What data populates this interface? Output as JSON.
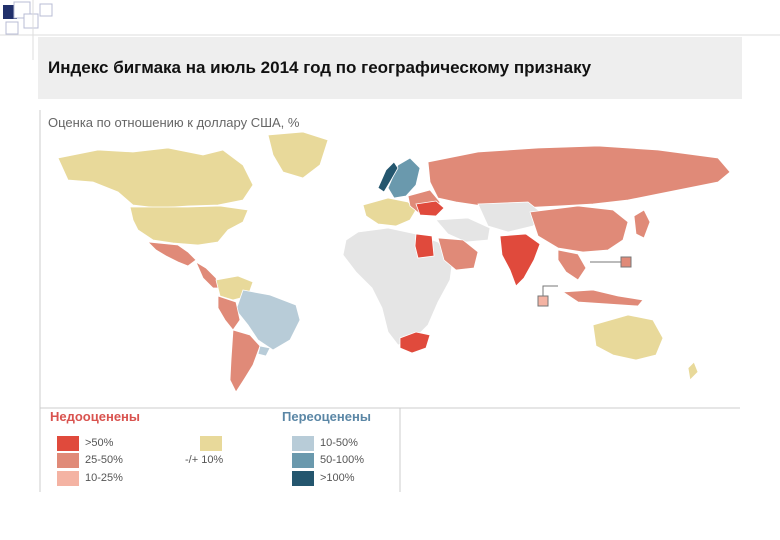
{
  "title": "Индекс бигмака на июль 2014 год по географическому признаку",
  "subtitle": "Оценка по отношению к доллару США, %",
  "colors": {
    "under_gt50": "#e04a3c",
    "under_25_50": "#e08a78",
    "under_10_25": "#f4b3a3",
    "neutral": "#e8d99a",
    "over_10_50": "#b8ccd8",
    "over_50_100": "#6a99ad",
    "over_gt100": "#24566e",
    "no_data": "#e5e5e5",
    "title_band": "#eeeeee",
    "deco_square": "#21306b"
  },
  "legend": {
    "undervalued_heading": "Недооценены",
    "overvalued_heading": "Переоценены",
    "items": [
      {
        "label": ">50%",
        "color": "#e04a3c"
      },
      {
        "label": "25-50%",
        "color": "#e08a78"
      },
      {
        "label": "10-25%",
        "color": "#f4b3a3"
      },
      {
        "label": "-/+ 10%",
        "color": "#e8d99a"
      },
      {
        "label": "10-50%",
        "color": "#b8ccd8"
      },
      {
        "label": "50-100%",
        "color": "#6a99ad"
      },
      {
        "label": ">100%",
        "color": "#24566e"
      }
    ]
  },
  "regions": [
    {
      "name": "north-america-north",
      "category": "neutral"
    },
    {
      "name": "usa",
      "category": "neutral"
    },
    {
      "name": "greenland",
      "category": "neutral"
    },
    {
      "name": "mexico",
      "category": "under_25_50"
    },
    {
      "name": "central-america",
      "category": "under_25_50"
    },
    {
      "name": "colombia-venezuela",
      "category": "neutral"
    },
    {
      "name": "brazil",
      "category": "over_10_50"
    },
    {
      "name": "peru",
      "category": "under_25_50"
    },
    {
      "name": "argentina-chile",
      "category": "under_25_50"
    },
    {
      "name": "uruguay",
      "category": "over_10_50"
    },
    {
      "name": "europe-west",
      "category": "neutral"
    },
    {
      "name": "scandinavia",
      "category": "over_50_100"
    },
    {
      "name": "norway",
      "category": "over_gt100"
    },
    {
      "name": "eastern-europe",
      "category": "under_25_50"
    },
    {
      "name": "ukraine",
      "category": "under_gt50"
    },
    {
      "name": "russia",
      "category": "under_25_50"
    },
    {
      "name": "africa",
      "category": "no_data"
    },
    {
      "name": "egypt",
      "category": "under_gt50"
    },
    {
      "name": "south-africa",
      "category": "under_gt50"
    },
    {
      "name": "middle-east",
      "category": "no_data"
    },
    {
      "name": "saudi-arabia",
      "category": "under_25_50"
    },
    {
      "name": "central-asia",
      "category": "no_data"
    },
    {
      "name": "india",
      "category": "under_gt50"
    },
    {
      "name": "china",
      "category": "under_25_50"
    },
    {
      "name": "southeast-asia",
      "category": "under_25_50"
    },
    {
      "name": "indonesia",
      "category": "under_25_50"
    },
    {
      "name": "japan",
      "category": "under_25_50"
    },
    {
      "name": "australia",
      "category": "neutral"
    },
    {
      "name": "new-zealand",
      "category": "neutral"
    }
  ]
}
